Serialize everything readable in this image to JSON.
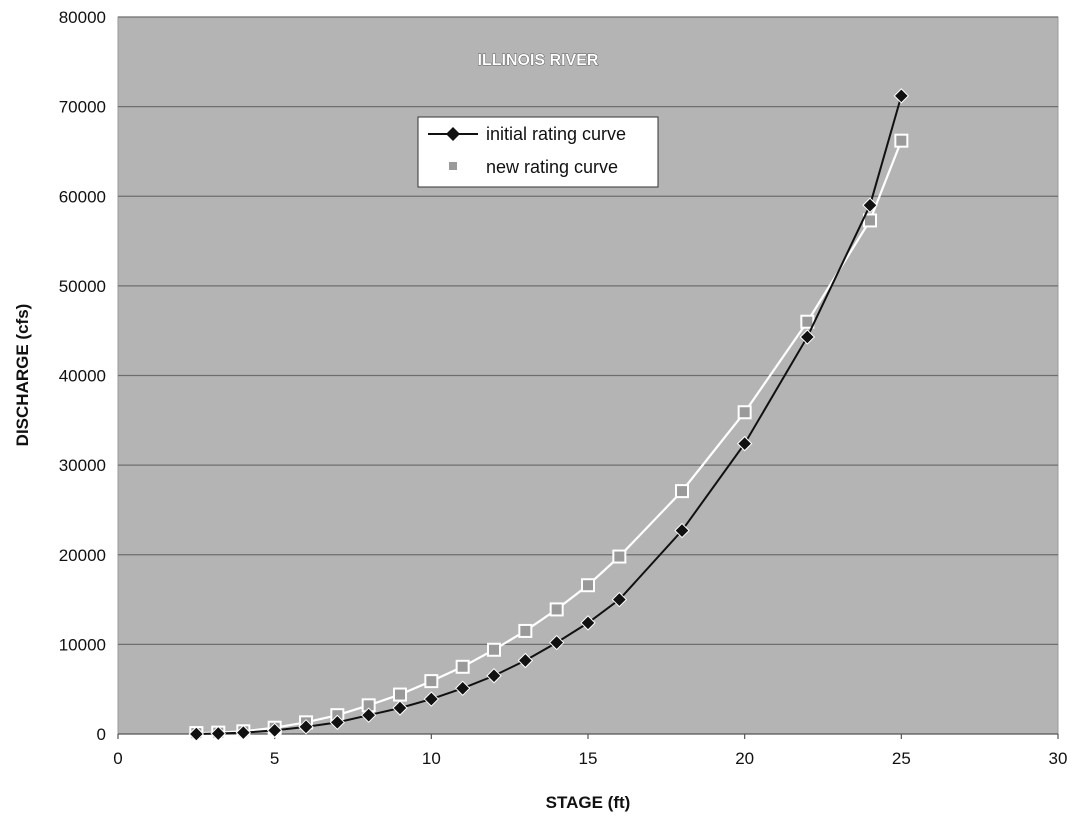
{
  "chart_data": {
    "type": "line",
    "title": "ILLINOIS RIVER",
    "xlabel": "STAGE (ft)",
    "ylabel": "DISCHARGE (cfs)",
    "xlim": [
      0,
      30
    ],
    "ylim": [
      0,
      80000
    ],
    "xticks": [
      0,
      5,
      10,
      15,
      20,
      25,
      30
    ],
    "yticks": [
      0,
      10000,
      20000,
      30000,
      40000,
      50000,
      60000,
      70000,
      80000
    ],
    "grid": true,
    "legend_position": "top-center",
    "colors": {
      "plot_bg": "#b4b4b4",
      "gridline": "#6e6e6e",
      "initial": "#111111",
      "new_line": "#ffffff",
      "new_marker": "#9a9a9a"
    },
    "series": [
      {
        "name": "initial rating curve",
        "marker": "diamond",
        "points": [
          [
            2.5,
            0
          ],
          [
            3.2,
            50
          ],
          [
            4,
            150
          ],
          [
            5,
            400
          ],
          [
            6,
            800
          ],
          [
            7,
            1300
          ],
          [
            8,
            2100
          ],
          [
            9,
            2900
          ],
          [
            10,
            3900
          ],
          [
            11,
            5100
          ],
          [
            12,
            6500
          ],
          [
            13,
            8200
          ],
          [
            14,
            10200
          ],
          [
            15,
            12400
          ],
          [
            16,
            15000
          ],
          [
            18,
            22700
          ],
          [
            20,
            32400
          ],
          [
            22,
            44300
          ],
          [
            24,
            59000
          ],
          [
            25,
            71200
          ]
        ]
      },
      {
        "name": "new rating curve",
        "marker": "square",
        "points": [
          [
            2.5,
            100
          ],
          [
            3.2,
            150
          ],
          [
            4,
            300
          ],
          [
            5,
            700
          ],
          [
            6,
            1300
          ],
          [
            7,
            2100
          ],
          [
            8,
            3200
          ],
          [
            9,
            4400
          ],
          [
            10,
            5900
          ],
          [
            11,
            7500
          ],
          [
            12,
            9400
          ],
          [
            13,
            11500
          ],
          [
            14,
            13900
          ],
          [
            15,
            16600
          ],
          [
            16,
            19800
          ],
          [
            18,
            27100
          ],
          [
            20,
            35900
          ],
          [
            22,
            46000
          ],
          [
            24,
            57300
          ],
          [
            25,
            66200
          ]
        ]
      }
    ]
  }
}
